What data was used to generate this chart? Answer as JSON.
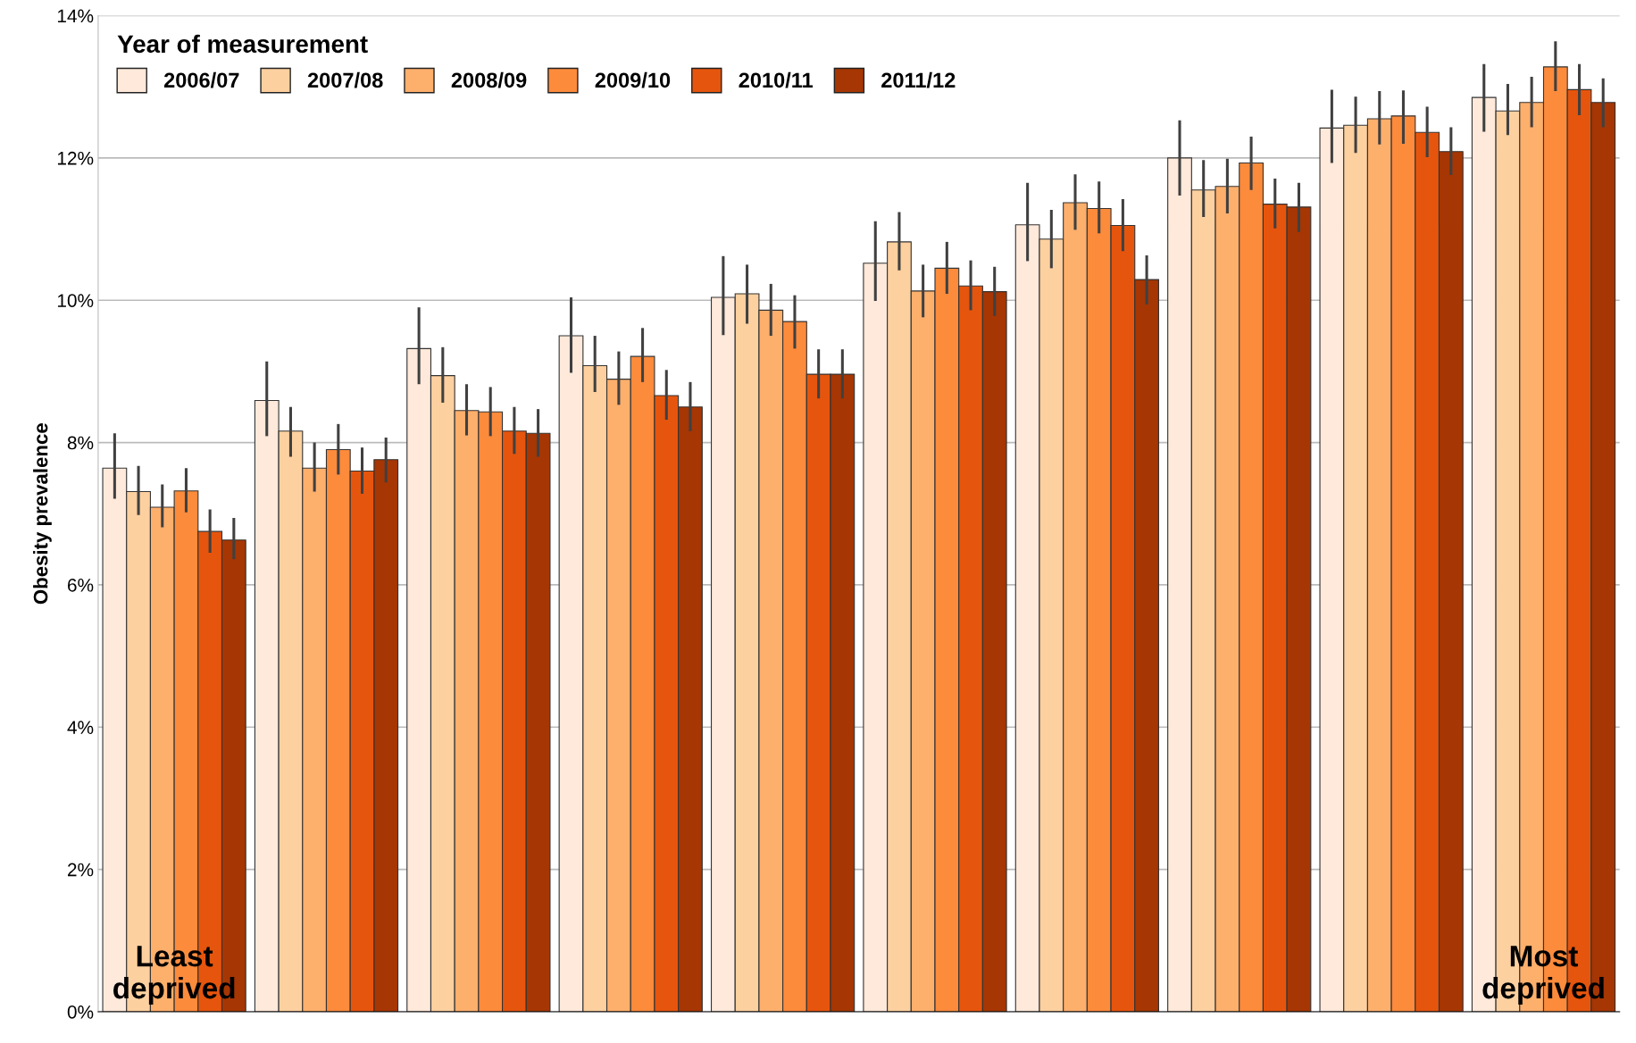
{
  "chart_data": {
    "type": "bar",
    "ylabel": "Obesity prevalence",
    "legend_title": "Year of measurement",
    "legend": "top left",
    "grid": "y",
    "categories": [
      null,
      null,
      null,
      null,
      null,
      null,
      null,
      null,
      null,
      null
    ],
    "ylim": [
      0,
      14
    ],
    "yticks": [
      {
        "value": 0,
        "label": "0%"
      },
      {
        "value": 2,
        "label": "2%"
      },
      {
        "value": 4,
        "label": "4%"
      },
      {
        "value": 6,
        "label": "6%"
      },
      {
        "value": 8,
        "label": "8%"
      },
      {
        "value": 10,
        "label": "10%"
      },
      {
        "value": 12,
        "label": "12%"
      },
      {
        "value": 14,
        "label": "14%"
      }
    ],
    "annotations": [
      "Least\ndeprived",
      "Most\ndeprived"
    ],
    "series": [
      {
        "name": "2006/07",
        "color": "#fee9da",
        "values": [
          7.64,
          8.59,
          9.32,
          9.5,
          10.04,
          10.52,
          11.06,
          12.0,
          12.42,
          12.85
        ],
        "errors": [
          [
            7.21,
            8.13
          ],
          [
            8.09,
            9.14
          ],
          [
            8.82,
            9.9
          ],
          [
            8.98,
            10.04
          ],
          [
            9.51,
            10.62
          ],
          [
            9.99,
            11.11
          ],
          [
            10.55,
            11.65
          ],
          [
            11.47,
            12.53
          ],
          [
            11.93,
            12.96
          ],
          [
            12.37,
            13.32
          ]
        ]
      },
      {
        "name": "2007/08",
        "color": "#fdd09f",
        "values": [
          7.31,
          8.16,
          8.94,
          9.08,
          10.09,
          10.82,
          10.86,
          11.55,
          12.46,
          12.66
        ],
        "errors": [
          [
            6.98,
            7.67
          ],
          [
            7.8,
            8.5
          ],
          [
            8.56,
            9.34
          ],
          [
            8.71,
            9.5
          ],
          [
            9.67,
            10.5
          ],
          [
            10.42,
            11.24
          ],
          [
            10.45,
            11.27
          ],
          [
            11.17,
            11.97
          ],
          [
            12.07,
            12.86
          ],
          [
            12.32,
            13.04
          ]
        ]
      },
      {
        "name": "2008/09",
        "color": "#fdaf6c",
        "values": [
          7.09,
          7.64,
          8.45,
          8.89,
          9.86,
          10.13,
          11.37,
          11.6,
          12.55,
          12.78
        ],
        "errors": [
          [
            6.81,
            7.41
          ],
          [
            7.31,
            8.0
          ],
          [
            8.1,
            8.82
          ],
          [
            8.53,
            9.28
          ],
          [
            9.5,
            10.23
          ],
          [
            9.76,
            10.5
          ],
          [
            10.99,
            11.77
          ],
          [
            11.22,
            11.99
          ],
          [
            12.19,
            12.94
          ],
          [
            12.43,
            13.14
          ]
        ]
      },
      {
        "name": "2009/10",
        "color": "#fd8b3c",
        "values": [
          7.32,
          7.9,
          8.43,
          9.21,
          9.7,
          10.45,
          11.29,
          11.93,
          12.59,
          13.28
        ],
        "errors": [
          [
            7.02,
            7.64
          ],
          [
            7.55,
            8.26
          ],
          [
            8.09,
            8.78
          ],
          [
            8.85,
            9.61
          ],
          [
            9.32,
            10.07
          ],
          [
            10.09,
            10.82
          ],
          [
            10.94,
            11.67
          ],
          [
            11.55,
            12.3
          ],
          [
            12.2,
            12.95
          ],
          [
            12.94,
            13.64
          ]
        ]
      },
      {
        "name": "2010/11",
        "color": "#e6550d",
        "values": [
          6.75,
          7.6,
          8.16,
          8.66,
          8.96,
          10.2,
          11.05,
          11.35,
          12.36,
          12.96
        ],
        "errors": [
          [
            6.45,
            7.06
          ],
          [
            7.28,
            7.93
          ],
          [
            7.84,
            8.5
          ],
          [
            8.32,
            9.02
          ],
          [
            8.62,
            9.31
          ],
          [
            9.86,
            10.56
          ],
          [
            10.69,
            11.42
          ],
          [
            11.01,
            11.71
          ],
          [
            12.01,
            12.72
          ],
          [
            12.6,
            13.32
          ]
        ]
      },
      {
        "name": "2011/12",
        "color": "#a63603",
        "values": [
          6.63,
          7.76,
          8.13,
          8.5,
          8.96,
          10.12,
          10.29,
          11.31,
          12.09,
          12.78
        ],
        "errors": [
          [
            6.36,
            6.94
          ],
          [
            7.44,
            8.07
          ],
          [
            7.8,
            8.47
          ],
          [
            8.16,
            8.85
          ],
          [
            8.62,
            9.31
          ],
          [
            9.78,
            10.47
          ],
          [
            9.94,
            10.63
          ],
          [
            10.96,
            11.65
          ],
          [
            11.76,
            12.43
          ],
          [
            12.43,
            13.12
          ]
        ]
      }
    ]
  }
}
